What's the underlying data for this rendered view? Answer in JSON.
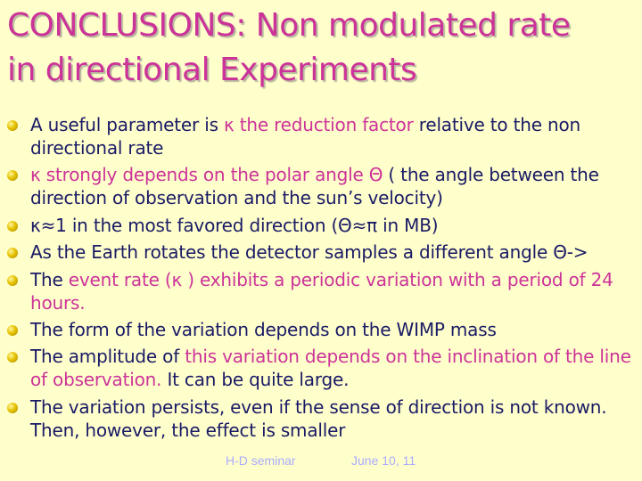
{
  "slide": {
    "title_line1": "CONCLUSIONS: Non modulated rate",
    "title_line2": "in directional Experiments"
  },
  "bullets": [
    {
      "pre": "A useful parameter is ",
      "hl": "κ the reduction factor",
      "post": " relative to the non directional rate"
    },
    {
      "hl": "κ strongly depends on the polar angle  Θ",
      "post": " ( the angle between the direction of observation and the sun’s velocity)"
    },
    {
      "text": "κ≈1 in the most favored direction (Θ≈π in MB)"
    },
    {
      "text": "As the Earth rotates the detector samples a different angle Θ->"
    },
    {
      "pre": "The ",
      "hl": "event rate (κ ) exhibits a periodic variation with a period of 24 hours."
    },
    {
      "text": "The form of the variation depends on the WIMP mass"
    },
    {
      "pre": "The amplitude of ",
      "hl": "this variation depends on the inclination of the line of observation.",
      "post": " It can be quite large."
    },
    {
      "text": "The variation  persists, even if the sense of direction is not known. Then, however, the effect is smaller"
    }
  ],
  "footer": {
    "left": "H-D seminar",
    "right": "June 10, 11"
  },
  "colors": {
    "background": "#ffffcc",
    "title": "#cc3399",
    "body_text": "#1a1a66",
    "highlight": "#cc3399",
    "footer": "#aaaaff",
    "bullet": "#e6c200"
  }
}
